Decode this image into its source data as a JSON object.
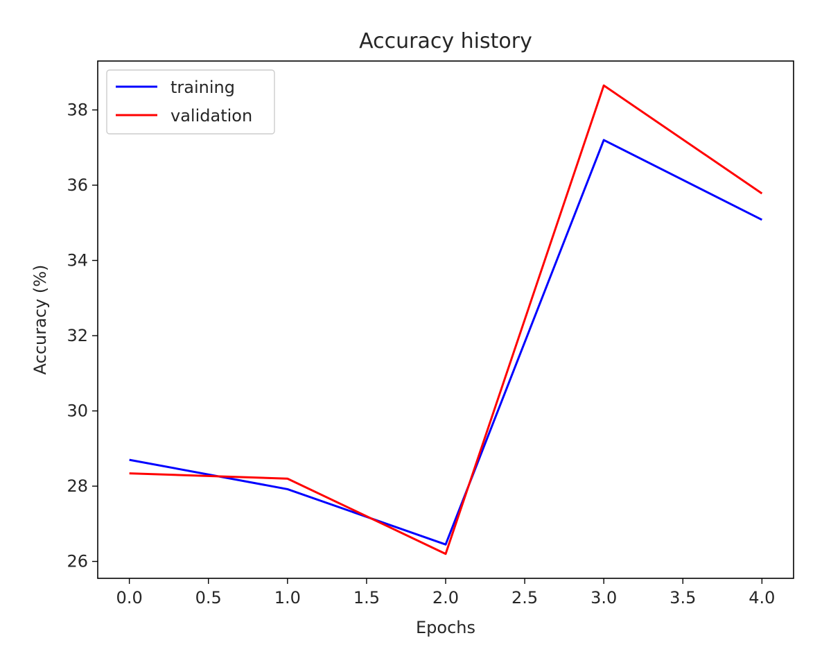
{
  "chart_data": {
    "type": "line",
    "title": "Accuracy history",
    "xlabel": "Epochs",
    "ylabel": "Accuracy (%)",
    "x": [
      0,
      1,
      2,
      3,
      4
    ],
    "xlim": [
      -0.2,
      4.2
    ],
    "ylim": [
      25.55,
      39.3
    ],
    "xticks": [
      "0.0",
      "0.5",
      "1.0",
      "1.5",
      "2.0",
      "2.5",
      "3.0",
      "3.5",
      "4.0"
    ],
    "yticks": [
      "26",
      "28",
      "30",
      "32",
      "34",
      "36",
      "38"
    ],
    "grid": false,
    "legend_position": "upper-left",
    "series": [
      {
        "name": "training",
        "color": "#0000ff",
        "values": [
          28.7,
          27.92,
          26.45,
          37.2,
          35.08
        ]
      },
      {
        "name": "validation",
        "color": "#ff0000",
        "values": [
          28.34,
          28.2,
          26.2,
          38.65,
          35.78
        ]
      }
    ]
  }
}
